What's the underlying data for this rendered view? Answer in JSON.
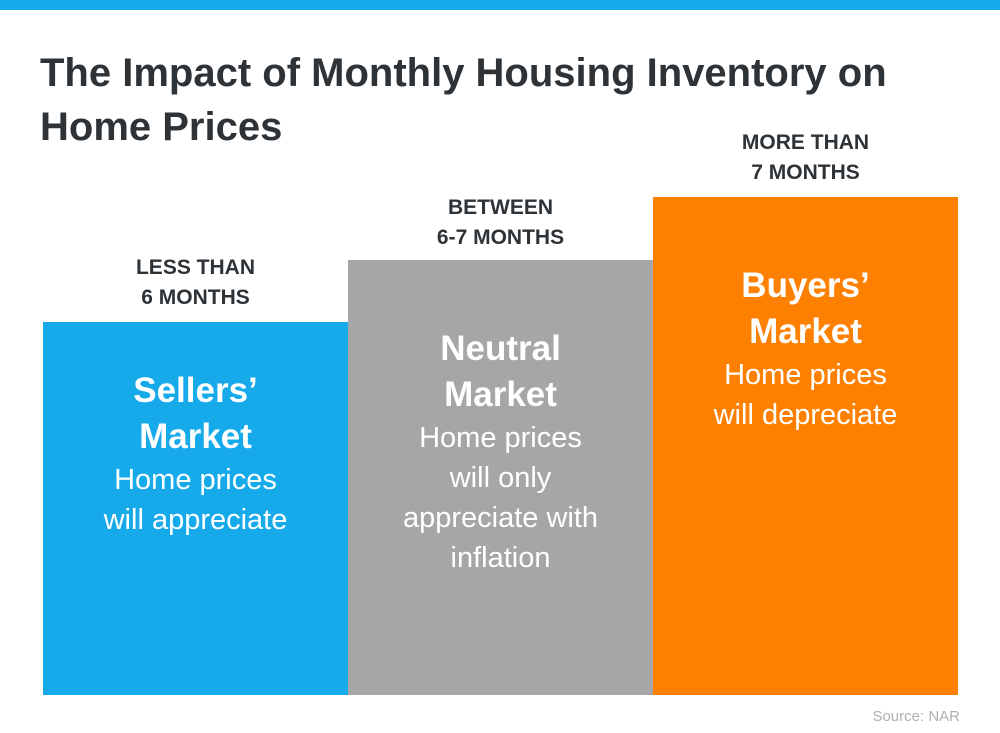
{
  "title": "The Impact of Monthly Housing Inventory on Home Prices",
  "colors": {
    "accent_bar": "#16aaeb",
    "sellers": "#16aaeb",
    "neutral": "#a6a6a6",
    "buyers": "#fe8000"
  },
  "columns": [
    {
      "label_line1": "LESS THAN",
      "label_line2": "6 MONTHS",
      "head_line1": "Sellers’",
      "head_line2": "Market",
      "body": [
        "Home prices",
        "will appreciate"
      ]
    },
    {
      "label_line1": "BETWEEN",
      "label_line2": "6-7 MONTHS",
      "head_line1": "Neutral",
      "head_line2": "Market",
      "body": [
        "Home prices",
        "will only",
        "appreciate with",
        "inflation"
      ]
    },
    {
      "label_line1": "MORE THAN",
      "label_line2": "7 MONTHS",
      "head_line1": "Buyers’",
      "head_line2": "Market",
      "body": [
        "Home prices",
        "will depreciate"
      ]
    }
  ],
  "source": "Source: NAR"
}
